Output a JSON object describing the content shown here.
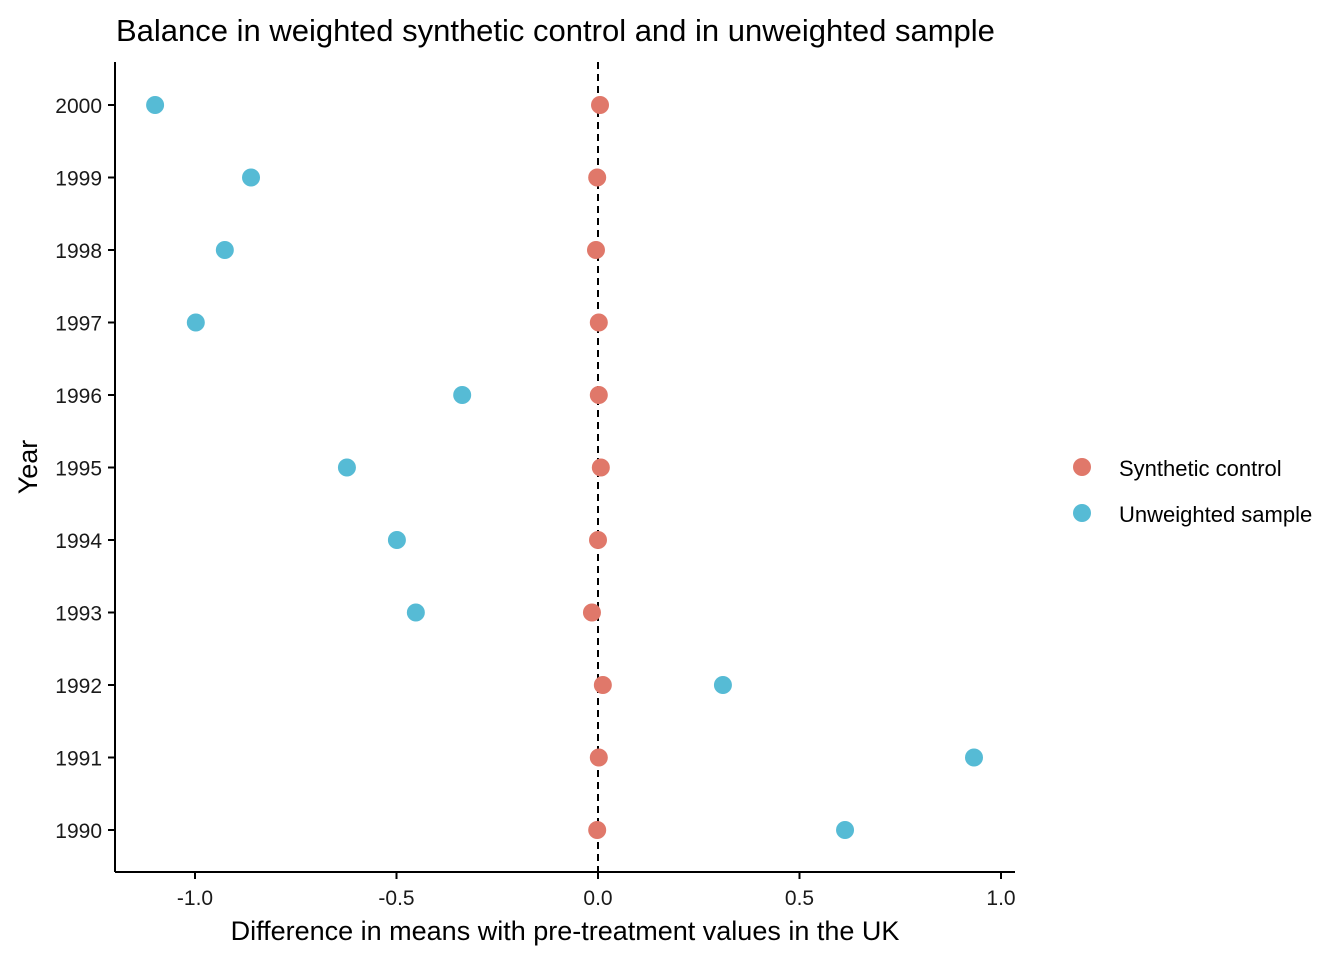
{
  "chart_data": {
    "type": "scatter",
    "title": "Balance in weighted synthetic control and in unweighted sample",
    "xlabel": "Difference in means with pre-treatment values in the UK",
    "ylabel": "Year",
    "xlim": [
      -1.2,
      1.035
    ],
    "xticks": [
      -1.0,
      -0.5,
      0.0,
      0.5,
      1.0
    ],
    "xtick_labels": [
      "-1.0",
      "-0.5",
      "0.0",
      "0.5",
      "1.0"
    ],
    "categories": [
      "1990",
      "1991",
      "1992",
      "1993",
      "1994",
      "1995",
      "1996",
      "1997",
      "1998",
      "1999",
      "2000"
    ],
    "reference_line": {
      "x": 0,
      "style": "dashed"
    },
    "legend_position": "right",
    "series": [
      {
        "name": "Synthetic control",
        "color": "#E0786A",
        "values": [
          -0.002,
          0.002,
          0.012,
          -0.015,
          0.0,
          0.007,
          0.002,
          0.002,
          -0.005,
          -0.002,
          0.005
        ]
      },
      {
        "name": "Unweighted sample",
        "color": "#56BBD5",
        "values": [
          0.613,
          0.933,
          0.31,
          -0.452,
          -0.499,
          -0.623,
          -0.337,
          -0.998,
          -0.926,
          -0.861,
          -1.099
        ]
      }
    ]
  }
}
